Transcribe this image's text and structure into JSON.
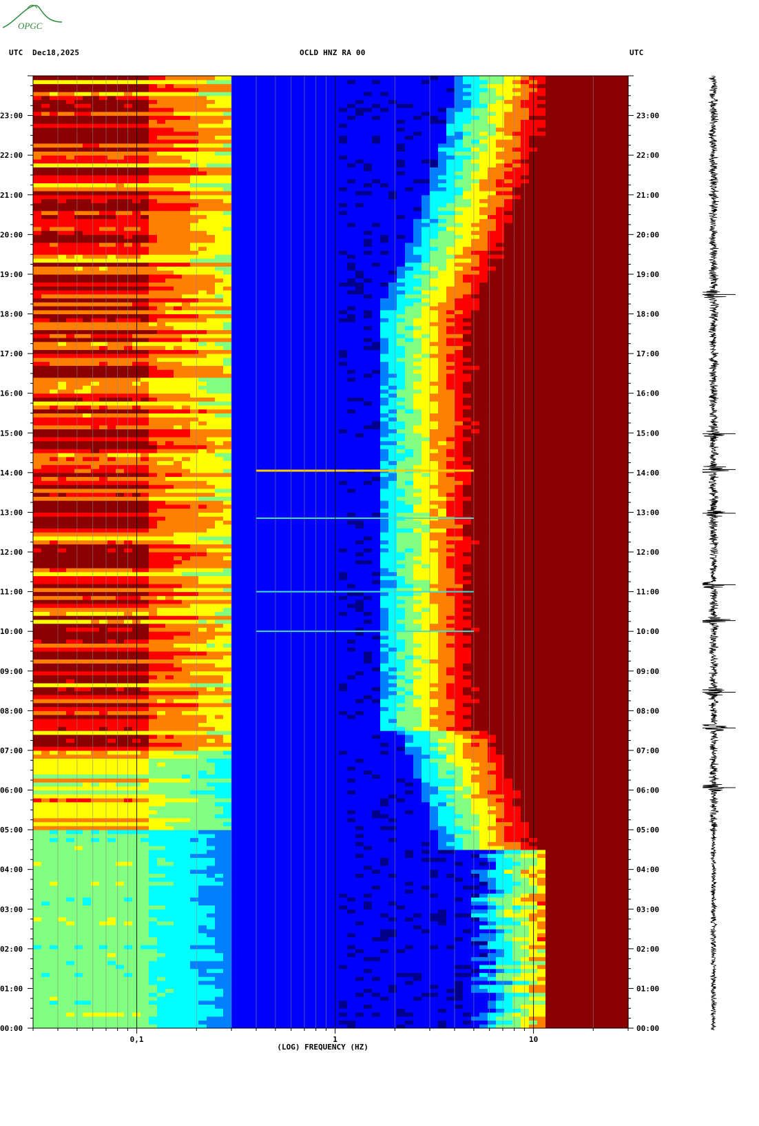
{
  "header": {
    "left_tz": "UTC",
    "date": "Dec18,2025",
    "station": "OCLD HNZ RA 00",
    "right_tz": "UTC"
  },
  "logo": {
    "text": "OPGC",
    "color": "#2e8a3a"
  },
  "chart_data": {
    "type": "heatmap",
    "title": "OCLD HNZ RA 00",
    "xlabel": "(LOG) FREQUENCY (HZ)",
    "ylabel": "UTC",
    "x_scale": "log",
    "xlim": [
      0.03,
      30
    ],
    "x_ticks": [
      {
        "value": 0.1,
        "label": "0,1"
      },
      {
        "value": 1,
        "label": "1"
      },
      {
        "value": 10,
        "label": "10"
      }
    ],
    "ylim_hours": [
      0,
      24
    ],
    "y_ticks": [
      "00:00",
      "01:00",
      "02:00",
      "03:00",
      "04:00",
      "05:00",
      "06:00",
      "07:00",
      "08:00",
      "09:00",
      "10:00",
      "11:00",
      "12:00",
      "13:00",
      "14:00",
      "15:00",
      "16:00",
      "17:00",
      "18:00",
      "19:00",
      "20:00",
      "21:00",
      "22:00",
      "23:00"
    ],
    "colormap": [
      "#00008b",
      "#0000ff",
      "#0080ff",
      "#00ffff",
      "#80ff80",
      "#ffff00",
      "#ff8000",
      "#ff0000",
      "#8b0000"
    ],
    "event_lines_hours": [
      14.05,
      12.85,
      10.0,
      11.0
    ],
    "seismogram": {
      "color": "#000000",
      "burst_hours": [
        18.5,
        15.0,
        14.1,
        13.0,
        11.2,
        10.3,
        8.5,
        7.6,
        6.1
      ]
    }
  }
}
